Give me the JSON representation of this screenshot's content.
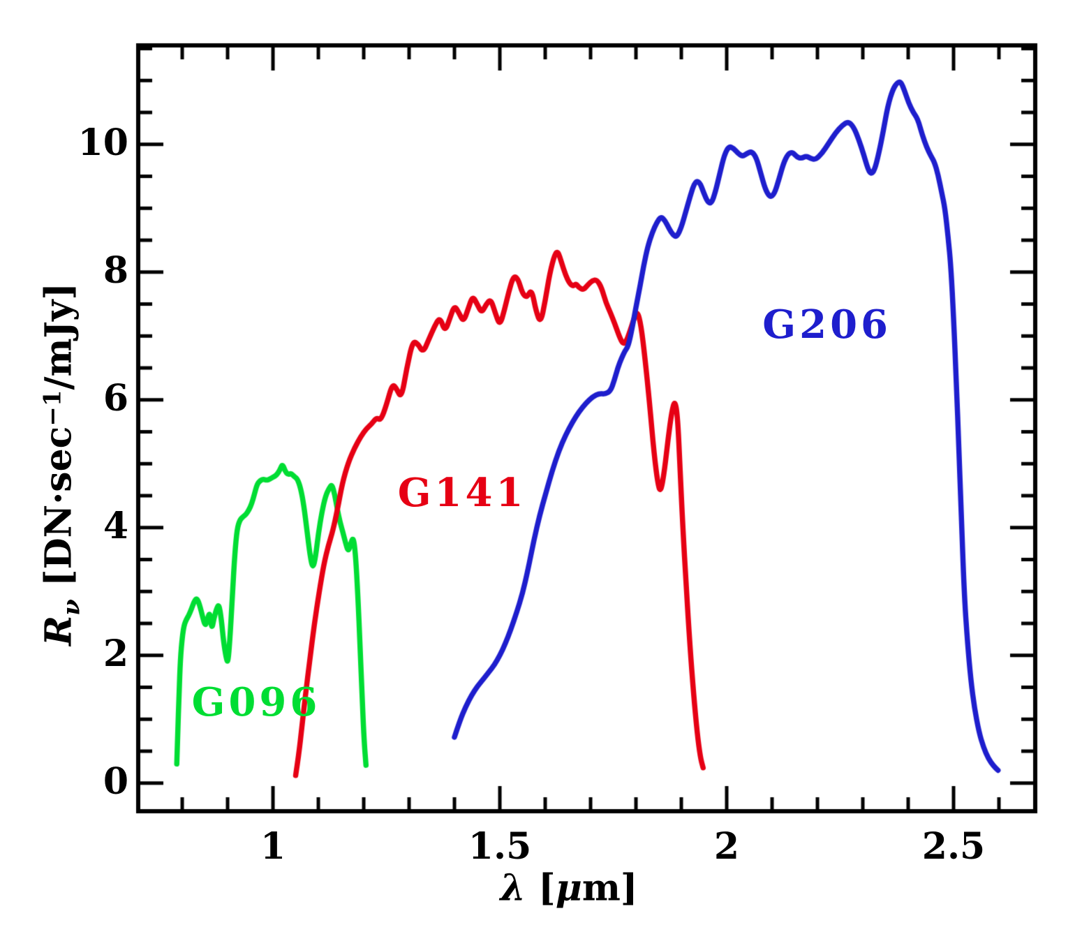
{
  "figure": {
    "background": "#ffffff"
  },
  "chart_data": {
    "type": "line",
    "title": "",
    "xlabel": {
      "l1": "λ",
      "l2": " [",
      "l3": "μ",
      "l4": "m]"
    },
    "ylabel": {
      "m1": "R",
      "sub": "ν",
      "m2": " [DN·sec",
      "sup": "−1",
      "m3": "/mJy]"
    },
    "xlim": [
      0.703,
      2.68
    ],
    "ylim": [
      -0.44,
      11.55
    ],
    "grid": false,
    "legend_position": "inline-labels",
    "axis_color": "#000000",
    "xticks": {
      "major": [
        1,
        1.5,
        2,
        2.5
      ],
      "labels": [
        "1",
        "1.5",
        "2",
        "2.5"
      ],
      "minor_step": 0.1,
      "minor_range": [
        0.8,
        2.6
      ]
    },
    "yticks": {
      "major": [
        0,
        2,
        4,
        6,
        8,
        10
      ],
      "labels": [
        "0",
        "2",
        "4",
        "6",
        "8",
        "10"
      ],
      "minor_step": 0.5,
      "minor_range": [
        0.5,
        11.5
      ]
    },
    "series": [
      {
        "name": "G096",
        "color": "#00dd33",
        "label_pos": [
          0.963,
          1.26
        ],
        "points": [
          [
            0.788,
            0.3
          ],
          [
            0.79,
            0.75
          ],
          [
            0.793,
            1.4
          ],
          [
            0.796,
            1.95
          ],
          [
            0.8,
            2.28
          ],
          [
            0.804,
            2.47
          ],
          [
            0.809,
            2.56
          ],
          [
            0.814,
            2.62
          ],
          [
            0.82,
            2.72
          ],
          [
            0.826,
            2.84
          ],
          [
            0.832,
            2.9
          ],
          [
            0.838,
            2.8
          ],
          [
            0.845,
            2.6
          ],
          [
            0.851,
            2.45
          ],
          [
            0.856,
            2.58
          ],
          [
            0.861,
            2.68
          ],
          [
            0.865,
            2.4
          ],
          [
            0.87,
            2.58
          ],
          [
            0.876,
            2.74
          ],
          [
            0.881,
            2.8
          ],
          [
            0.886,
            2.58
          ],
          [
            0.891,
            2.22
          ],
          [
            0.897,
            1.95
          ],
          [
            0.901,
            1.88
          ],
          [
            0.906,
            2.35
          ],
          [
            0.911,
            3.0
          ],
          [
            0.916,
            3.6
          ],
          [
            0.921,
            3.98
          ],
          [
            0.927,
            4.12
          ],
          [
            0.934,
            4.17
          ],
          [
            0.941,
            4.21
          ],
          [
            0.947,
            4.28
          ],
          [
            0.953,
            4.37
          ],
          [
            0.959,
            4.52
          ],
          [
            0.965,
            4.68
          ],
          [
            0.972,
            4.74
          ],
          [
            0.979,
            4.76
          ],
          [
            0.986,
            4.74
          ],
          [
            0.993,
            4.76
          ],
          [
            1.0,
            4.79
          ],
          [
            1.008,
            4.82
          ],
          [
            1.015,
            4.9
          ],
          [
            1.021,
            5.0
          ],
          [
            1.027,
            4.88
          ],
          [
            1.033,
            4.83
          ],
          [
            1.04,
            4.85
          ],
          [
            1.047,
            4.8
          ],
          [
            1.054,
            4.76
          ],
          [
            1.061,
            4.62
          ],
          [
            1.068,
            4.35
          ],
          [
            1.075,
            3.95
          ],
          [
            1.082,
            3.55
          ],
          [
            1.088,
            3.35
          ],
          [
            1.094,
            3.55
          ],
          [
            1.1,
            3.9
          ],
          [
            1.108,
            4.25
          ],
          [
            1.116,
            4.5
          ],
          [
            1.124,
            4.62
          ],
          [
            1.13,
            4.68
          ],
          [
            1.136,
            4.52
          ],
          [
            1.142,
            4.28
          ],
          [
            1.148,
            4.08
          ],
          [
            1.154,
            3.93
          ],
          [
            1.16,
            3.76
          ],
          [
            1.166,
            3.62
          ],
          [
            1.171,
            3.74
          ],
          [
            1.177,
            3.86
          ],
          [
            1.182,
            3.58
          ],
          [
            1.187,
            2.95
          ],
          [
            1.192,
            2.15
          ],
          [
            1.197,
            1.25
          ],
          [
            1.201,
            0.65
          ],
          [
            1.205,
            0.28
          ]
        ]
      },
      {
        "name": "G141",
        "color": "#e60014",
        "label_pos": [
          1.417,
          4.54
        ],
        "points": [
          [
            1.05,
            0.12
          ],
          [
            1.057,
            0.45
          ],
          [
            1.064,
            0.9
          ],
          [
            1.072,
            1.4
          ],
          [
            1.081,
            1.92
          ],
          [
            1.091,
            2.48
          ],
          [
            1.102,
            3.0
          ],
          [
            1.112,
            3.42
          ],
          [
            1.122,
            3.72
          ],
          [
            1.132,
            3.95
          ],
          [
            1.142,
            4.28
          ],
          [
            1.153,
            4.7
          ],
          [
            1.166,
            5.02
          ],
          [
            1.18,
            5.25
          ],
          [
            1.194,
            5.43
          ],
          [
            1.206,
            5.55
          ],
          [
            1.217,
            5.62
          ],
          [
            1.228,
            5.72
          ],
          [
            1.238,
            5.68
          ],
          [
            1.25,
            5.92
          ],
          [
            1.263,
            6.25
          ],
          [
            1.272,
            6.18
          ],
          [
            1.283,
            6.02
          ],
          [
            1.295,
            6.5
          ],
          [
            1.308,
            6.92
          ],
          [
            1.319,
            6.88
          ],
          [
            1.331,
            6.74
          ],
          [
            1.343,
            6.94
          ],
          [
            1.356,
            7.15
          ],
          [
            1.368,
            7.3
          ],
          [
            1.379,
            7.06
          ],
          [
            1.39,
            7.28
          ],
          [
            1.4,
            7.48
          ],
          [
            1.41,
            7.36
          ],
          [
            1.42,
            7.22
          ],
          [
            1.43,
            7.42
          ],
          [
            1.44,
            7.63
          ],
          [
            1.45,
            7.5
          ],
          [
            1.46,
            7.36
          ],
          [
            1.47,
            7.5
          ],
          [
            1.48,
            7.58
          ],
          [
            1.49,
            7.36
          ],
          [
            1.5,
            7.16
          ],
          [
            1.51,
            7.4
          ],
          [
            1.52,
            7.7
          ],
          [
            1.53,
            7.94
          ],
          [
            1.54,
            7.9
          ],
          [
            1.55,
            7.66
          ],
          [
            1.56,
            7.6
          ],
          [
            1.57,
            7.74
          ],
          [
            1.58,
            7.38
          ],
          [
            1.59,
            7.2
          ],
          [
            1.6,
            7.55
          ],
          [
            1.61,
            7.98
          ],
          [
            1.621,
            8.28
          ],
          [
            1.628,
            8.33
          ],
          [
            1.636,
            8.15
          ],
          [
            1.645,
            7.95
          ],
          [
            1.654,
            7.82
          ],
          [
            1.662,
            7.78
          ],
          [
            1.668,
            7.82
          ],
          [
            1.674,
            7.76
          ],
          [
            1.684,
            7.72
          ],
          [
            1.694,
            7.8
          ],
          [
            1.704,
            7.87
          ],
          [
            1.714,
            7.88
          ],
          [
            1.724,
            7.76
          ],
          [
            1.734,
            7.52
          ],
          [
            1.744,
            7.36
          ],
          [
            1.754,
            7.18
          ],
          [
            1.764,
            6.98
          ],
          [
            1.772,
            6.87
          ],
          [
            1.779,
            6.92
          ],
          [
            1.787,
            7.08
          ],
          [
            1.796,
            7.28
          ],
          [
            1.803,
            7.39
          ],
          [
            1.811,
            7.18
          ],
          [
            1.82,
            6.65
          ],
          [
            1.83,
            5.95
          ],
          [
            1.84,
            5.15
          ],
          [
            1.849,
            4.65
          ],
          [
            1.855,
            4.56
          ],
          [
            1.863,
            4.9
          ],
          [
            1.871,
            5.4
          ],
          [
            1.879,
            5.82
          ],
          [
            1.886,
            6.0
          ],
          [
            1.892,
            5.72
          ],
          [
            1.897,
            4.95
          ],
          [
            1.903,
            4.05
          ],
          [
            1.911,
            3.05
          ],
          [
            1.919,
            2.15
          ],
          [
            1.927,
            1.4
          ],
          [
            1.935,
            0.78
          ],
          [
            1.942,
            0.4
          ],
          [
            1.948,
            0.24
          ]
        ]
      },
      {
        "name": "G206",
        "color": "#1e1ecd",
        "label_pos": [
          2.221,
          7.18
        ],
        "points": [
          [
            1.4,
            0.72
          ],
          [
            1.412,
            0.98
          ],
          [
            1.425,
            1.2
          ],
          [
            1.438,
            1.38
          ],
          [
            1.451,
            1.52
          ],
          [
            1.464,
            1.63
          ],
          [
            1.476,
            1.74
          ],
          [
            1.488,
            1.85
          ],
          [
            1.5,
            2.0
          ],
          [
            1.512,
            2.18
          ],
          [
            1.524,
            2.4
          ],
          [
            1.537,
            2.67
          ],
          [
            1.55,
            2.97
          ],
          [
            1.562,
            3.34
          ],
          [
            1.575,
            3.8
          ],
          [
            1.588,
            4.2
          ],
          [
            1.601,
            4.53
          ],
          [
            1.615,
            4.88
          ],
          [
            1.63,
            5.2
          ],
          [
            1.645,
            5.45
          ],
          [
            1.66,
            5.65
          ],
          [
            1.675,
            5.82
          ],
          [
            1.69,
            5.95
          ],
          [
            1.705,
            6.05
          ],
          [
            1.719,
            6.1
          ],
          [
            1.732,
            6.09
          ],
          [
            1.744,
            6.14
          ],
          [
            1.752,
            6.3
          ],
          [
            1.76,
            6.5
          ],
          [
            1.768,
            6.65
          ],
          [
            1.776,
            6.77
          ],
          [
            1.783,
            6.84
          ],
          [
            1.791,
            7.1
          ],
          [
            1.8,
            7.45
          ],
          [
            1.809,
            7.78
          ],
          [
            1.817,
            8.1
          ],
          [
            1.826,
            8.4
          ],
          [
            1.836,
            8.62
          ],
          [
            1.846,
            8.78
          ],
          [
            1.855,
            8.87
          ],
          [
            1.864,
            8.81
          ],
          [
            1.873,
            8.68
          ],
          [
            1.882,
            8.58
          ],
          [
            1.89,
            8.55
          ],
          [
            1.9,
            8.7
          ],
          [
            1.91,
            8.95
          ],
          [
            1.92,
            9.2
          ],
          [
            1.93,
            9.42
          ],
          [
            1.94,
            9.42
          ],
          [
            1.95,
            9.23
          ],
          [
            1.958,
            9.1
          ],
          [
            1.966,
            9.07
          ],
          [
            1.975,
            9.25
          ],
          [
            1.985,
            9.55
          ],
          [
            1.995,
            9.84
          ],
          [
            2.005,
            9.97
          ],
          [
            2.015,
            9.94
          ],
          [
            2.025,
            9.86
          ],
          [
            2.035,
            9.81
          ],
          [
            2.045,
            9.86
          ],
          [
            2.055,
            9.89
          ],
          [
            2.065,
            9.8
          ],
          [
            2.075,
            9.55
          ],
          [
            2.085,
            9.3
          ],
          [
            2.095,
            9.17
          ],
          [
            2.105,
            9.22
          ],
          [
            2.115,
            9.45
          ],
          [
            2.125,
            9.7
          ],
          [
            2.135,
            9.85
          ],
          [
            2.145,
            9.88
          ],
          [
            2.155,
            9.8
          ],
          [
            2.165,
            9.78
          ],
          [
            2.175,
            9.82
          ],
          [
            2.185,
            9.78
          ],
          [
            2.196,
            9.76
          ],
          [
            2.21,
            9.86
          ],
          [
            2.225,
            10.02
          ],
          [
            2.24,
            10.18
          ],
          [
            2.255,
            10.3
          ],
          [
            2.268,
            10.36
          ],
          [
            2.28,
            10.27
          ],
          [
            2.291,
            10.08
          ],
          [
            2.302,
            9.84
          ],
          [
            2.311,
            9.62
          ],
          [
            2.318,
            9.53
          ],
          [
            2.326,
            9.6
          ],
          [
            2.335,
            9.85
          ],
          [
            2.345,
            10.2
          ],
          [
            2.355,
            10.6
          ],
          [
            2.366,
            10.86
          ],
          [
            2.376,
            10.97
          ],
          [
            2.384,
            10.98
          ],
          [
            2.392,
            10.84
          ],
          [
            2.401,
            10.65
          ],
          [
            2.411,
            10.5
          ],
          [
            2.421,
            10.4
          ],
          [
            2.431,
            10.15
          ],
          [
            2.441,
            9.95
          ],
          [
            2.45,
            9.82
          ],
          [
            2.458,
            9.72
          ],
          [
            2.466,
            9.52
          ],
          [
            2.474,
            9.24
          ],
          [
            2.481,
            9.0
          ],
          [
            2.488,
            8.55
          ],
          [
            2.494,
            8.1
          ],
          [
            2.5,
            7.3
          ],
          [
            2.506,
            6.3
          ],
          [
            2.512,
            5.2
          ],
          [
            2.518,
            4.0
          ],
          [
            2.524,
            2.9
          ],
          [
            2.531,
            2.18
          ],
          [
            2.538,
            1.62
          ],
          [
            2.546,
            1.18
          ],
          [
            2.556,
            0.8
          ],
          [
            2.566,
            0.56
          ],
          [
            2.577,
            0.38
          ],
          [
            2.588,
            0.27
          ],
          [
            2.598,
            0.2
          ]
        ]
      }
    ]
  }
}
